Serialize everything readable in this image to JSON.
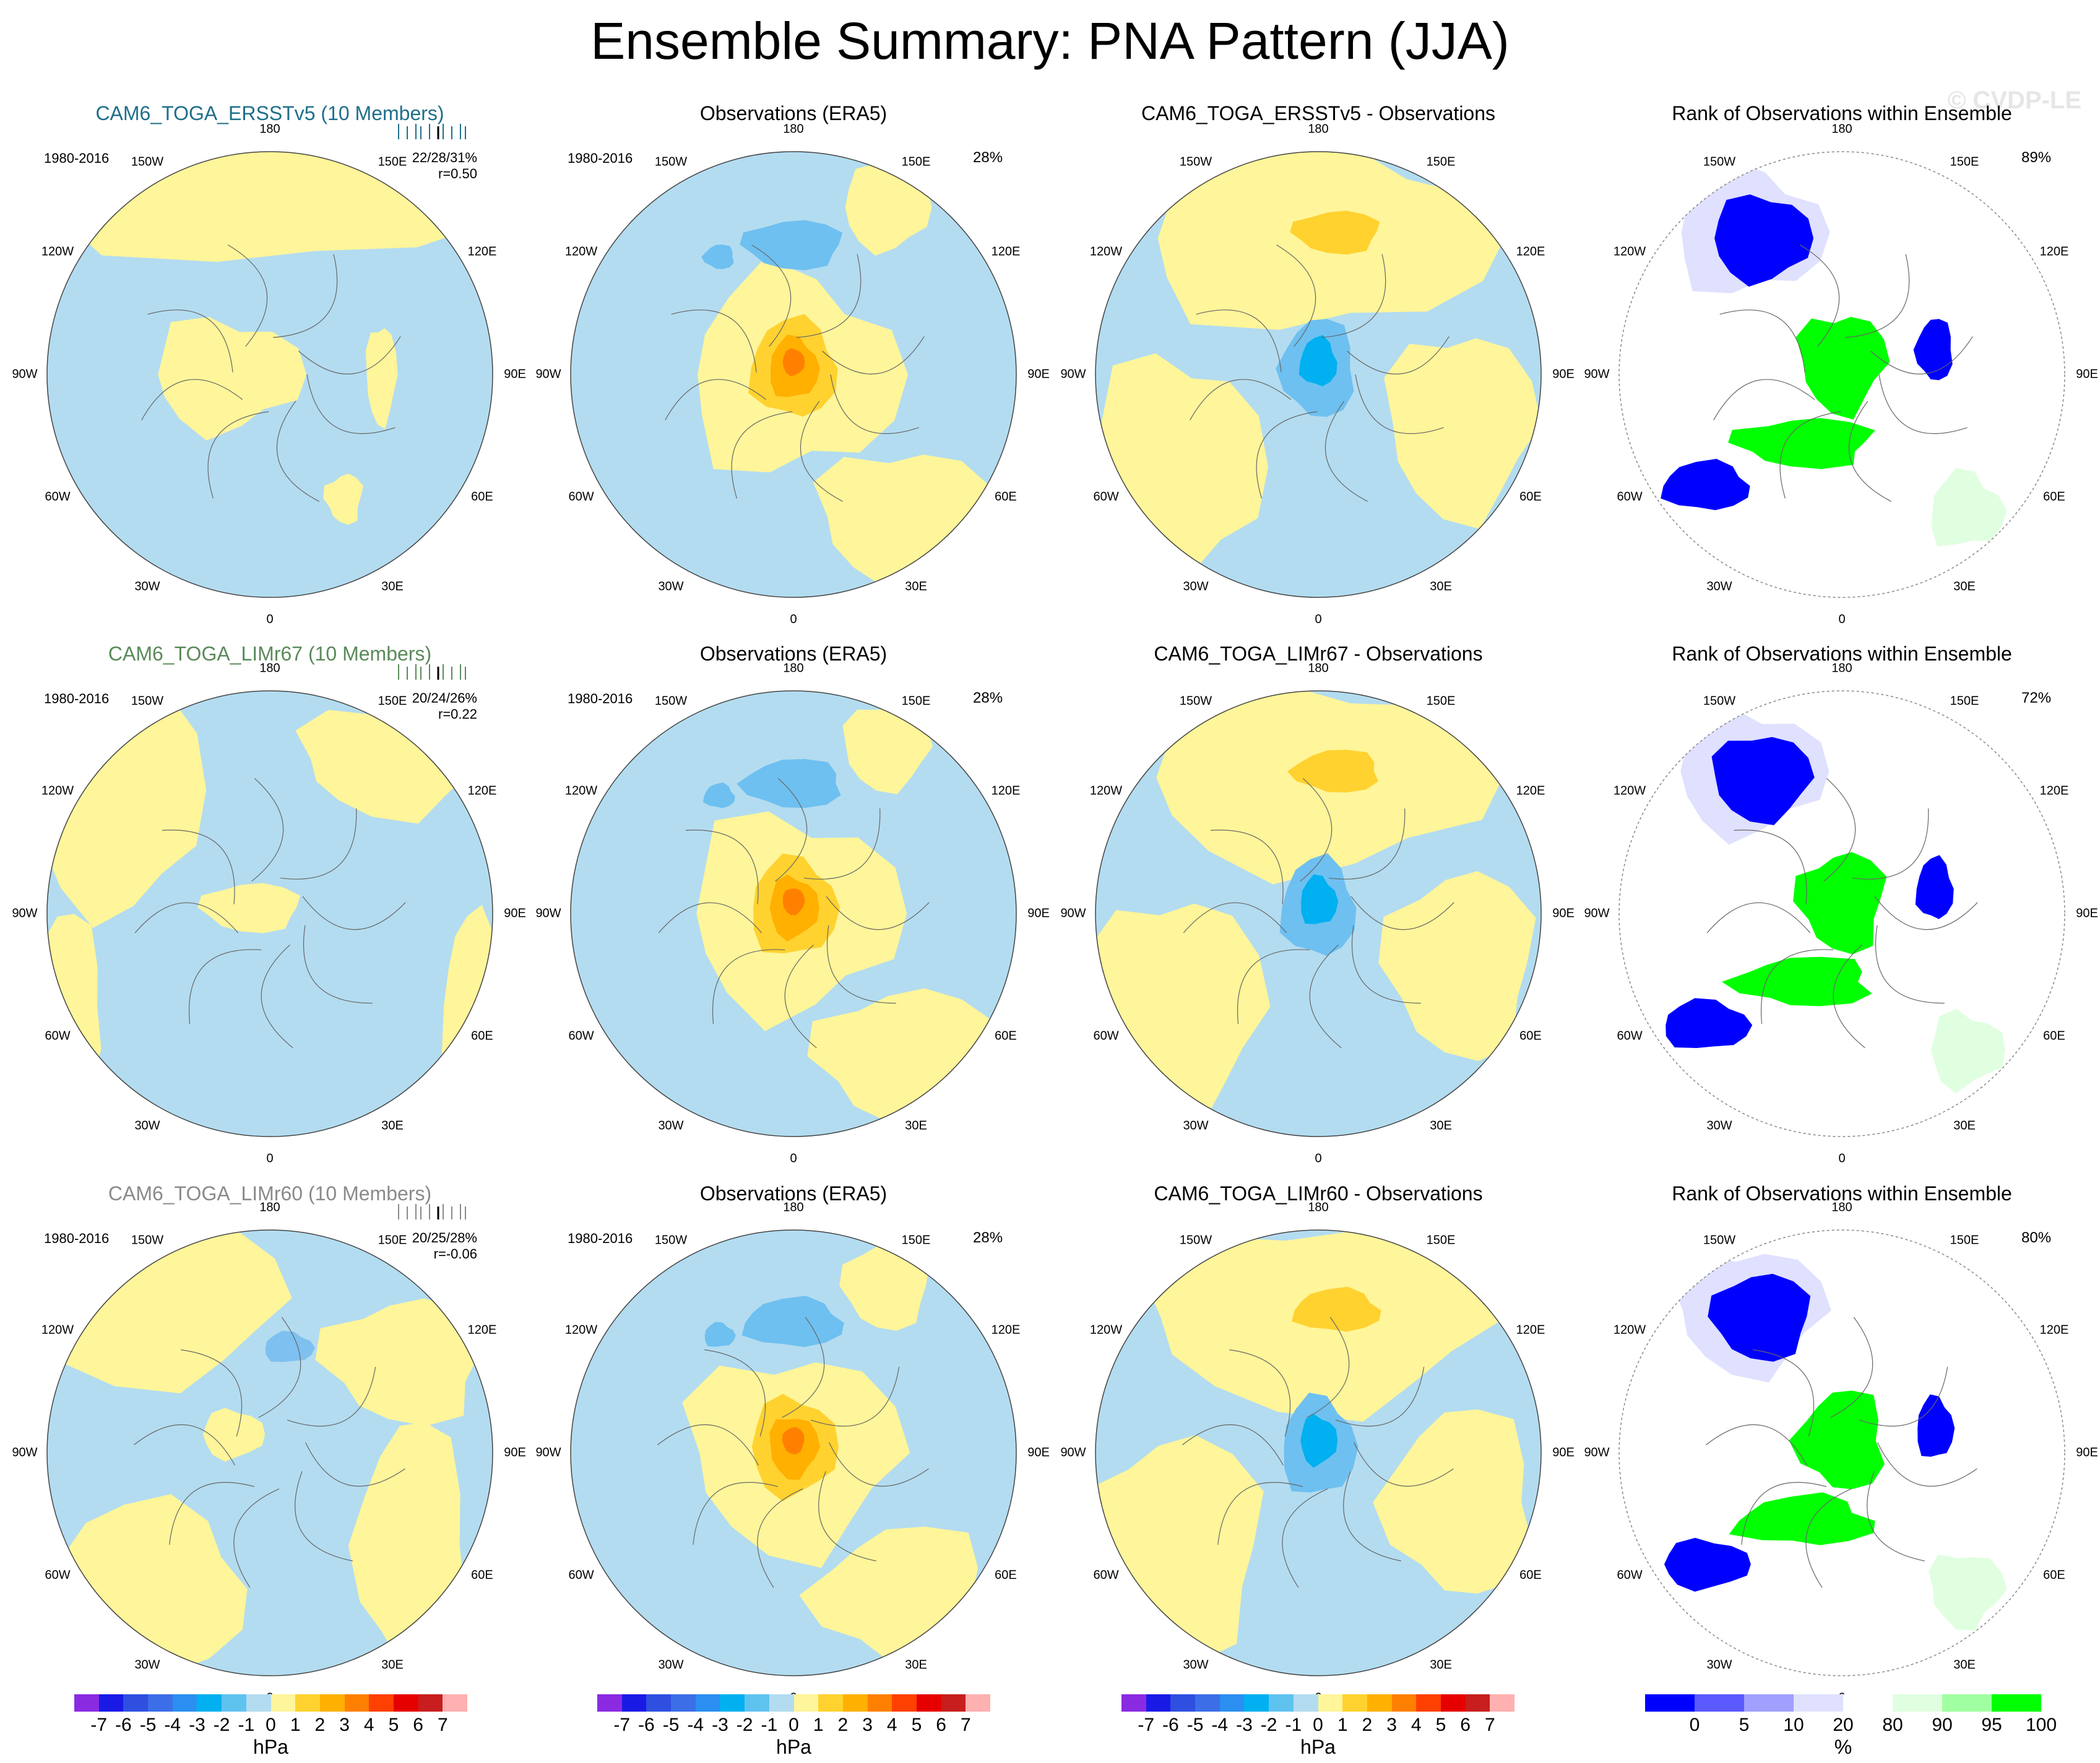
{
  "title": "Ensemble Summary: PNA Pattern (JJA)",
  "watermark": "© CVDP-LE",
  "period": "1980-2016",
  "lon_labels": [
    "180",
    "150E",
    "120E",
    "90E",
    "60E",
    "30E",
    "0",
    "30W",
    "60W",
    "90W",
    "120W",
    "150W"
  ],
  "rows": [
    {
      "model_title": "CAM6_TOGA_ERSSTv5 (10 Members)",
      "model_color": "#1f6f8b",
      "stats_pct": "22/28/31%",
      "stats_r": "r=0.50",
      "obs_title": "Observations (ERA5)",
      "obs_pct": "28%",
      "diff_title": "CAM6_TOGA_ERSSTv5 - Observations",
      "rank_title": "Rank of Observations within Ensemble",
      "rank_pct": "89%"
    },
    {
      "model_title": "CAM6_TOGA_LIMr67 (10 Members)",
      "model_color": "#5a8a5a",
      "stats_pct": "20/24/26%",
      "stats_r": "r=0.22",
      "obs_title": "Observations (ERA5)",
      "obs_pct": "28%",
      "diff_title": "CAM6_TOGA_LIMr67 - Observations",
      "rank_title": "Rank of Observations within Ensemble",
      "rank_pct": "72%"
    },
    {
      "model_title": "CAM6_TOGA_LIMr60 (10 Members)",
      "model_color": "#8a8a8a",
      "stats_pct": "20/25/28%",
      "stats_r": "r=-0.06",
      "obs_title": "Observations (ERA5)",
      "obs_pct": "28%",
      "diff_title": "CAM6_TOGA_LIMr60 - Observations",
      "rank_title": "Rank of Observations within Ensemble",
      "rank_pct": "80%"
    }
  ],
  "colorbar_hpa": {
    "ticks": [
      "-7",
      "-6",
      "-5",
      "-4",
      "-3",
      "-2",
      "-1",
      "0",
      "1",
      "2",
      "3",
      "4",
      "5",
      "6",
      "7"
    ],
    "unit": "hPa",
    "colors": [
      "#8a2be2",
      "#1a1ae6",
      "#2f4fe0",
      "#3c6ee8",
      "#2a8ff0",
      "#00b0f0",
      "#5fc3f0",
      "#b3dcf0",
      "#fff59a",
      "#ffd230",
      "#ffb000",
      "#ff8000",
      "#ff4000",
      "#e60000",
      "#c81e1e",
      "#ffb0b0"
    ]
  },
  "colorbar_pct": {
    "ticks": [
      "0",
      "5",
      "10",
      "20",
      "80",
      "90",
      "95",
      "100"
    ],
    "unit": "%",
    "colors": [
      "#0000ff",
      "#5a5aff",
      "#a0a0ff",
      "#e0e0ff",
      "#ffffff",
      "#e0ffe0",
      "#a0ffa0",
      "#00ff00"
    ]
  }
}
